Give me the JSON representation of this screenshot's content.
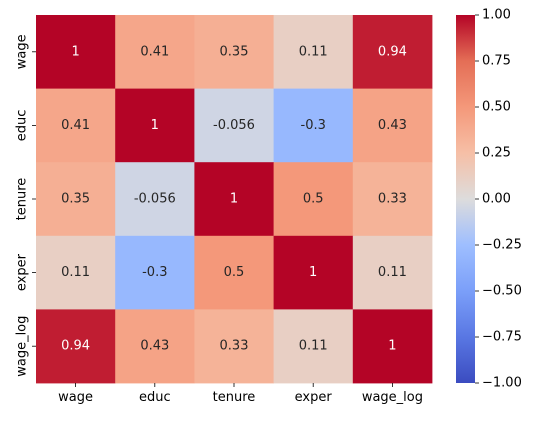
{
  "chart_data": {
    "type": "heatmap",
    "row_labels": [
      "wage",
      "educ",
      "tenure",
      "exper",
      "wage_log"
    ],
    "col_labels": [
      "wage",
      "educ",
      "tenure",
      "exper",
      "wage_log"
    ],
    "values": [
      [
        1,
        0.41,
        0.35,
        0.11,
        0.94
      ],
      [
        0.41,
        1,
        -0.056,
        -0.3,
        0.43
      ],
      [
        0.35,
        -0.056,
        1,
        0.5,
        0.33
      ],
      [
        0.11,
        -0.3,
        0.5,
        1,
        0.11
      ],
      [
        0.94,
        0.43,
        0.33,
        0.11,
        1
      ]
    ],
    "value_labels": [
      [
        "1",
        "0.41",
        "0.35",
        "0.11",
        "0.94"
      ],
      [
        "0.41",
        "1",
        "-0.056",
        "-0.3",
        "0.43"
      ],
      [
        "0.35",
        "-0.056",
        "1",
        "0.5",
        "0.33"
      ],
      [
        "0.11",
        "-0.3",
        "0.5",
        "1",
        "0.11"
      ],
      [
        "0.94",
        "0.43",
        "0.33",
        "0.11",
        "1"
      ]
    ],
    "colorbar": {
      "vmin": -1,
      "vmax": 1,
      "ticks": [
        1.0,
        0.75,
        0.5,
        0.25,
        0.0,
        -0.25,
        -0.5,
        -0.75,
        -1.0
      ],
      "tick_labels": [
        "1.00",
        "0.75",
        "0.50",
        "0.25",
        "0.00",
        "−0.25",
        "−0.50",
        "−0.75",
        "−1.00"
      ]
    },
    "colormap": "coolwarm",
    "title": "",
    "xlabel": "",
    "ylabel": ""
  }
}
